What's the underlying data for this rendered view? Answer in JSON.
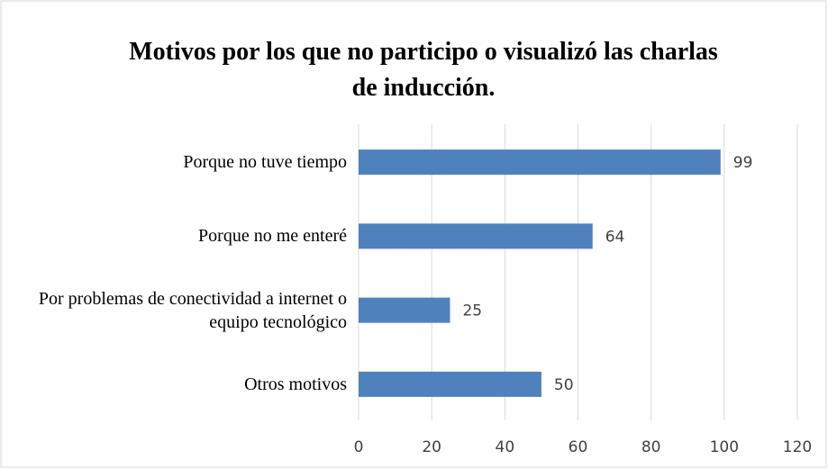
{
  "chart_data": {
    "type": "bar",
    "orientation": "horizontal",
    "title": "Motivos por los que no participo o visualizó las charlas de inducción.",
    "categories": [
      "Porque no tuve tiempo",
      "Porque no me enteré",
      "Por problemas de conectividad a internet o equipo tecnológico",
      "Otros motivos"
    ],
    "values": [
      99,
      64,
      25,
      50
    ],
    "color": "#4f81bd",
    "xlim": [
      0,
      120
    ],
    "xticks": [
      0,
      20,
      40,
      60,
      80,
      100,
      120
    ],
    "grid": true
  }
}
